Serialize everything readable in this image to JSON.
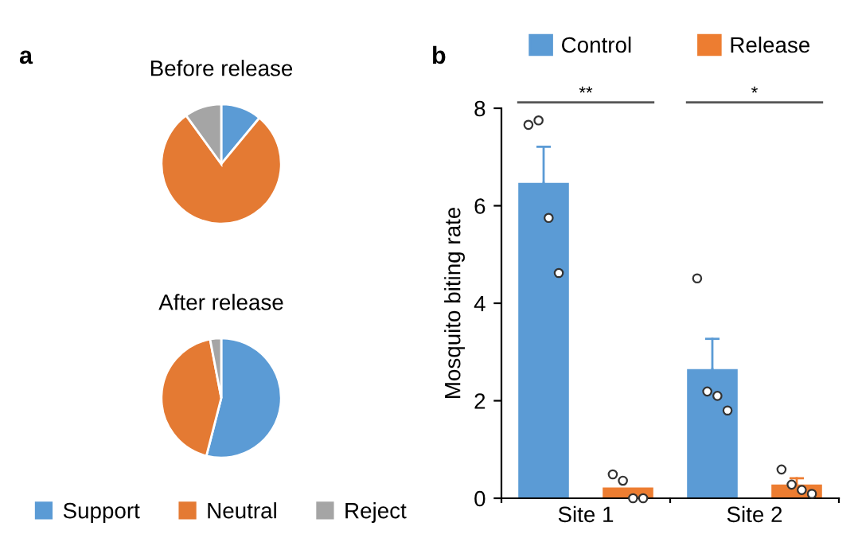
{
  "chart_data": [
    {
      "type": "pie",
      "title": "Before release",
      "annotations": [
        "a"
      ],
      "categories": [
        "Support",
        "Neutral",
        "Reject"
      ],
      "values": [
        11,
        79,
        10
      ],
      "colors": [
        "#5b9bd5",
        "#e47a33",
        "#a5a5a5"
      ],
      "legend": "bottom"
    },
    {
      "type": "pie",
      "title": "After release",
      "categories": [
        null,
        null,
        null
      ],
      "values": [
        54,
        43,
        3
      ],
      "colors": [
        "#5b9bd5",
        "#e47a33",
        "#a5a5a5"
      ]
    },
    {
      "type": "bar",
      "annotations": [
        "b",
        "**",
        "*"
      ],
      "ylabel": "Mosquito biting rate",
      "categories": [
        "Site 1",
        "Site 2"
      ],
      "ylim": [
        0,
        8
      ],
      "yticks": [
        0,
        2,
        4,
        6,
        8
      ],
      "legend": "top",
      "grid": false,
      "series": [
        {
          "name": "Control",
          "color": "#5b9bd5",
          "values": [
            6.47,
            2.65
          ],
          "errors": [
            0.74,
            0.62
          ]
        },
        {
          "name": "Release",
          "color": "#ed7d31",
          "values": [
            0.22,
            0.28
          ],
          "errors": [
            null,
            0.13
          ]
        },
        {
          "type": "scatter",
          "color": "#333333",
          "marker": "circle",
          "x": [
            "Site 1",
            "Site 1",
            "Site 1",
            "Site 1",
            "Site 2",
            "Site 2",
            "Site 2",
            "Site 2"
          ],
          "values": [
            7.66,
            7.75,
            5.75,
            4.62,
            4.51,
            2.19,
            2.1,
            1.8
          ]
        },
        {
          "type": "scatter",
          "color": "#333333",
          "marker": "circle",
          "x": [
            "Site 1",
            "Site 1",
            "Site 1",
            "Site 1",
            "Site 2",
            "Site 2",
            "Site 2",
            "Site 2"
          ],
          "values": [
            0.49,
            0.36,
            0,
            0,
            0.59,
            0.28,
            0.17,
            0.09
          ]
        }
      ]
    }
  ]
}
